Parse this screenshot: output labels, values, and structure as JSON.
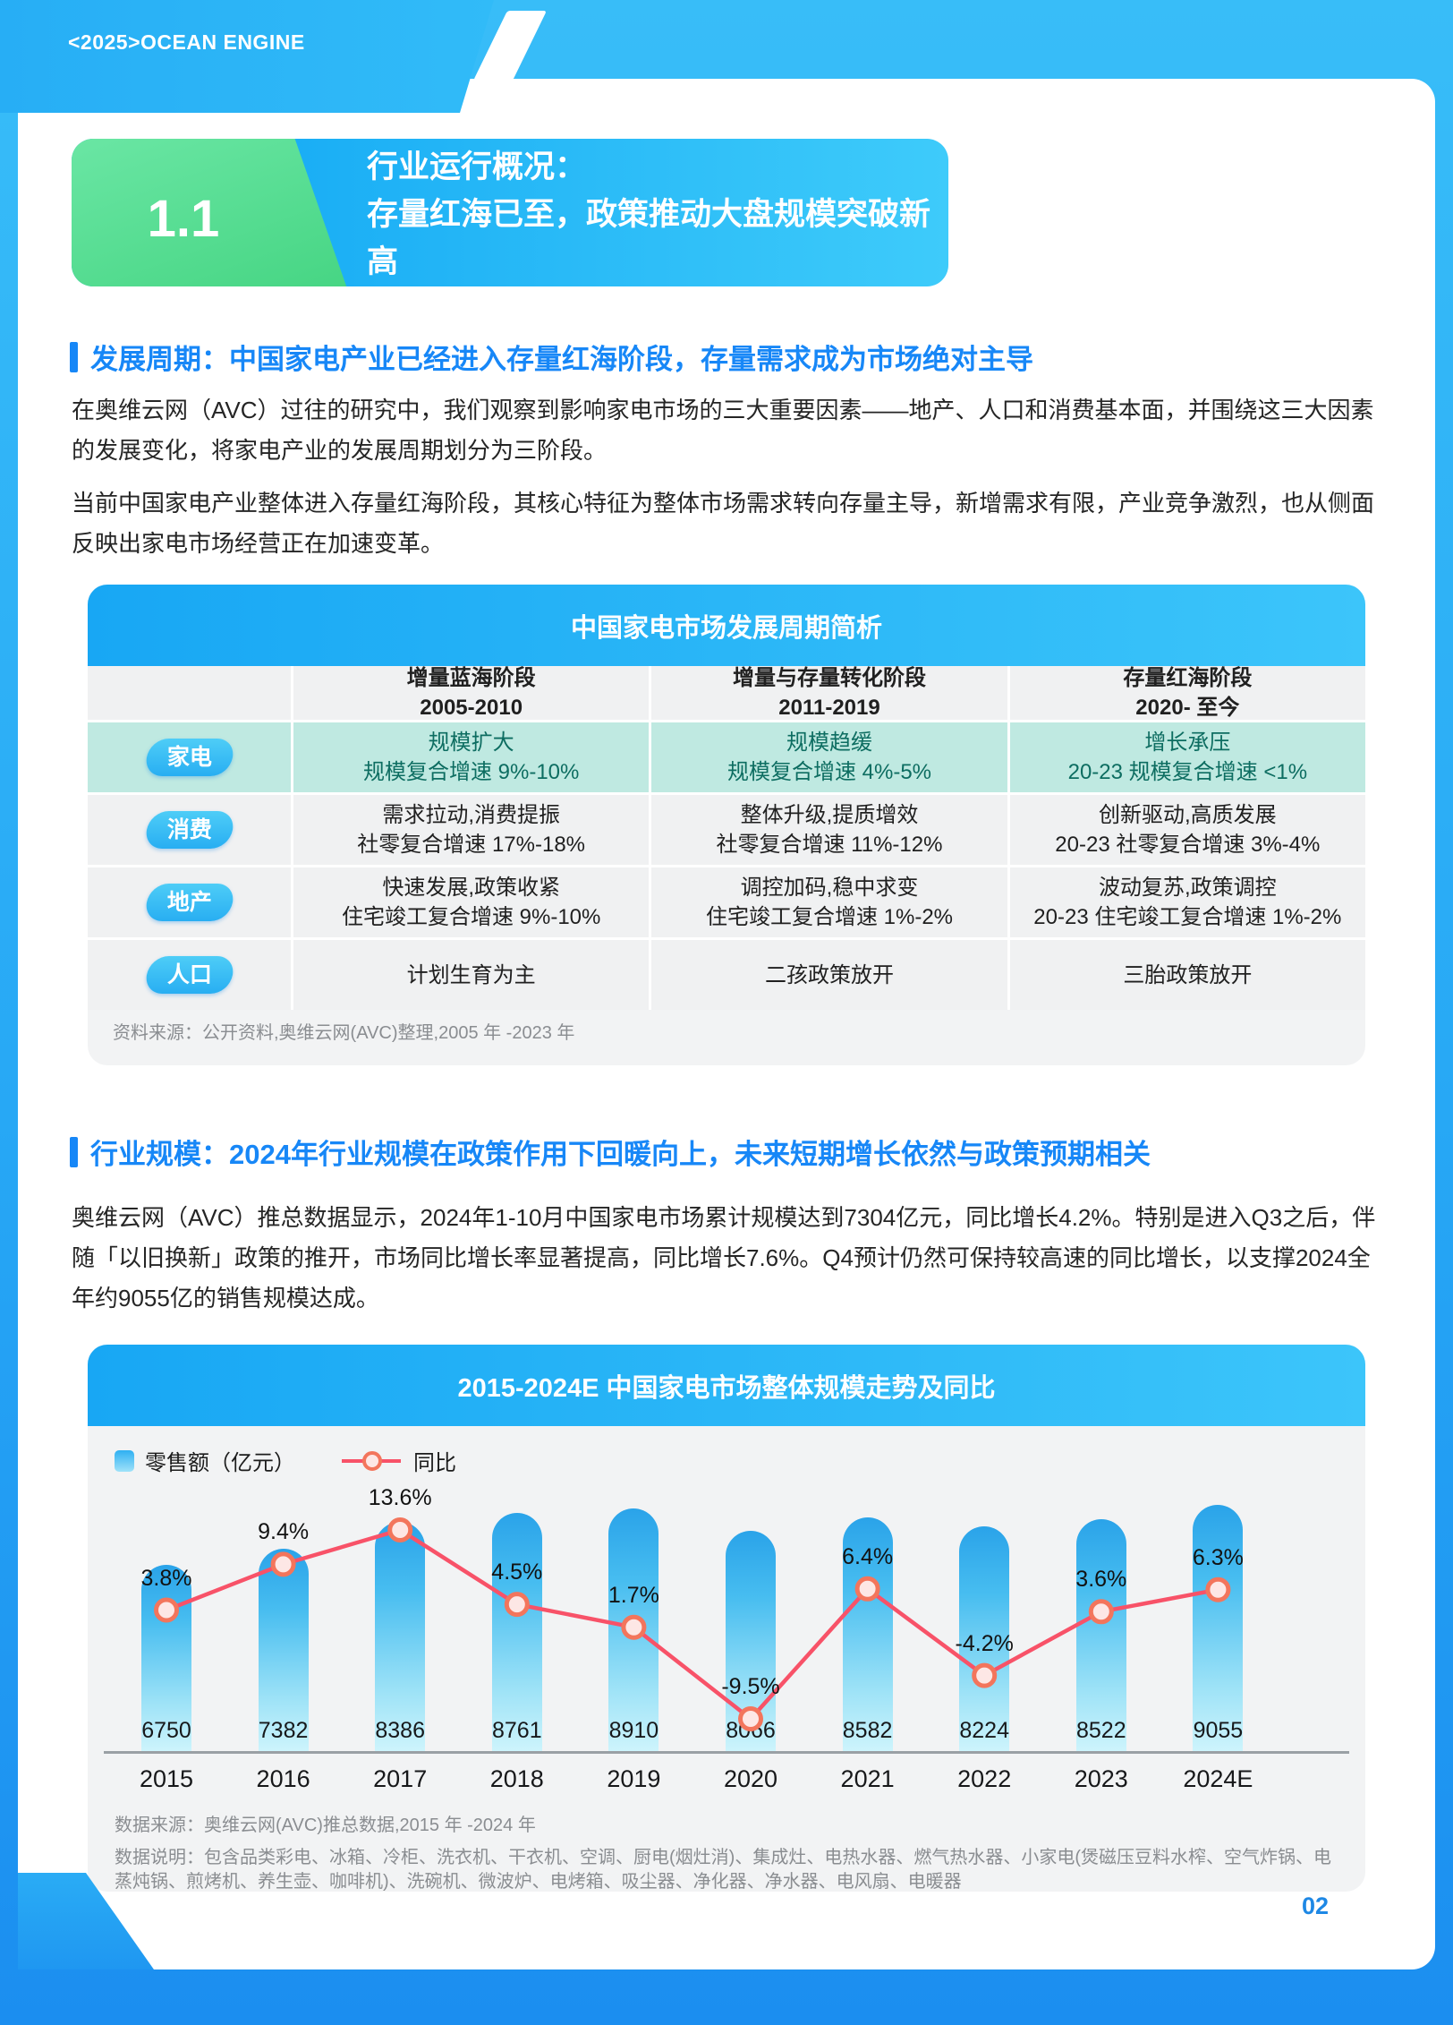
{
  "page": {
    "header_brand": "<2025>OCEAN ENGINE",
    "page_number": "02"
  },
  "banner": {
    "number": "1.1",
    "title_line1": "行业运行概况：",
    "title_line2": "存量红海已至，政策推动大盘规模突破新高"
  },
  "section1": {
    "heading": "发展周期：中国家电产业已经进入存量红海阶段，存量需求成为市场绝对主导",
    "p1": "在奥维云网（AVC）过往的研究中，我们观察到影响家电市场的三大重要因素——地产、人口和消费基本面，并围绕这三大因素的发展变化，将家电产业的发展周期划分为三阶段。",
    "p2": "当前中国家电产业整体进入存量红海阶段，其核心特征为整体市场需求转向存量主导，新增需求有限，产业竞争激烈，也从侧面反映出家电市场经营正在加速变革。"
  },
  "table_card": {
    "title": "中国家电市场发展周期简析",
    "header": [
      {
        "line1": "增量蓝海阶段",
        "line2": "2005-2010"
      },
      {
        "line1": "增量与存量转化阶段",
        "line2": "2011-2019"
      },
      {
        "line1": "存量红海阶段",
        "line2": "2020- 至今"
      }
    ],
    "rows": [
      {
        "label": "家电",
        "highlight": true,
        "cells": [
          [
            "规模扩大",
            "规模复合增速 9%-10%"
          ],
          [
            "规模趋缓",
            "规模复合增速 4%-5%"
          ],
          [
            "增长承压",
            "20-23 规模复合增速 <1%"
          ]
        ]
      },
      {
        "label": "消费",
        "highlight": false,
        "cells": [
          [
            "需求拉动,消费提振",
            "社零复合增速 17%-18%"
          ],
          [
            "整体升级,提质增效",
            "社零复合增速 11%-12%"
          ],
          [
            "创新驱动,高质发展",
            "20-23 社零复合增速 3%-4%"
          ]
        ]
      },
      {
        "label": "地产",
        "highlight": false,
        "cells": [
          [
            "快速发展,政策收紧",
            "住宅竣工复合增速 9%-10%"
          ],
          [
            "调控加码,稳中求变",
            "住宅竣工复合增速 1%-2%"
          ],
          [
            "波动复苏,政策调控",
            "20-23 住宅竣工复合增速 1%-2%"
          ]
        ]
      },
      {
        "label": "人口",
        "highlight": false,
        "cells": [
          [
            "计划生育为主"
          ],
          [
            "二孩政策放开"
          ],
          [
            "三胎政策放开"
          ]
        ]
      }
    ],
    "source": "资料来源：公开资料,奥维云网(AVC)整理,2005 年 -2023 年"
  },
  "section2": {
    "heading": "行业规模：2024年行业规模在政策作用下回暖向上，未来短期增长依然与政策预期相关",
    "p": "奥维云网（AVC）推总数据显示，2024年1-10月中国家电市场累计规模达到7304亿元，同比增长4.2%。特别是进入Q3之后，伴随「以旧换新」政策的推开，市场同比增长率显著提高，同比增长7.6%。Q4预计仍然可保持较高速的同比增长，以支撑2024全年约9055亿的销售规模达成。"
  },
  "chart_card": {
    "source": "数据来源：奥维云网(AVC)推总数据,2015 年 -2024 年",
    "note": "数据说明：包含品类彩电、冰箱、冷柜、洗衣机、干衣机、空调、厨电(烟灶消)、集成灶、电热水器、燃气热水器、小家电(煲磁压豆料水榨、空气炸锅、电蒸炖锅、煎烤机、养生壶、咖啡机)、洗碗机、微波炉、电烤箱、吸尘器、净化器、净水器、电风扇、电暖器"
  },
  "chart_data": {
    "type": "bar",
    "title": "2015-2024E 中国家电市场整体规模走势及同比",
    "categories": [
      "2015",
      "2016",
      "2017",
      "2018",
      "2019",
      "2020",
      "2021",
      "2022",
      "2023",
      "2024E"
    ],
    "series": [
      {
        "name": "零售额（亿元）",
        "type": "bar",
        "unit": "亿元",
        "values": [
          6750,
          7382,
          8386,
          8761,
          8910,
          8066,
          8582,
          8224,
          8522,
          9055
        ]
      },
      {
        "name": "同比",
        "type": "line",
        "unit": "%",
        "values": [
          3.8,
          9.4,
          13.6,
          4.5,
          1.7,
          -9.5,
          6.4,
          -4.2,
          3.6,
          6.3
        ]
      }
    ],
    "legend_position": "top-left",
    "value_label_position": "inside-bar-bottom",
    "grid": false
  },
  "colors": {
    "frame_blue": "#29b2f6",
    "accent_blue": "#1787f7",
    "banner_green": "#57dd93",
    "mint_row": "#bfe9e1",
    "mint_text": "#0d6d61",
    "bar_top": "#2aa3e9",
    "bar_bottom": "#cdf4fc",
    "line_red": "#f85268",
    "marker_ring": "#f3755c",
    "note_gray": "#8a8d91"
  }
}
